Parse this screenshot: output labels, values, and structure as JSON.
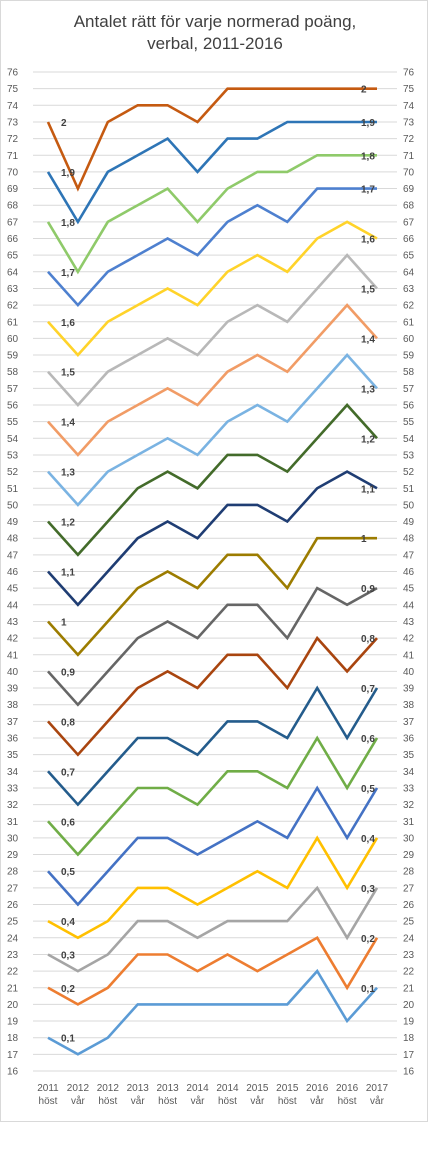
{
  "chart_data": {
    "type": "line",
    "title": "Antalet rätt för varje normerad poäng,",
    "subtitle": "verbal, 2011-2016",
    "xlabel": "",
    "ylabel": "",
    "ylim": [
      16,
      76
    ],
    "y_ticks": [
      16,
      17,
      18,
      19,
      20,
      21,
      22,
      23,
      24,
      25,
      26,
      27,
      28,
      29,
      30,
      31,
      32,
      33,
      34,
      35,
      36,
      37,
      38,
      39,
      40,
      41,
      42,
      43,
      44,
      45,
      46,
      47,
      48,
      49,
      50,
      51,
      52,
      53,
      54,
      55,
      56,
      57,
      58,
      59,
      60,
      61,
      62,
      63,
      64,
      65,
      66,
      67,
      68,
      69,
      70,
      71,
      72,
      73,
      74,
      75,
      76
    ],
    "grid": true,
    "legend": "none",
    "categories": [
      {
        "year": "2011",
        "term": "höst"
      },
      {
        "year": "2012",
        "term": "vår"
      },
      {
        "year": "2012",
        "term": "höst"
      },
      {
        "year": "2013",
        "term": "vår"
      },
      {
        "year": "2013",
        "term": "höst"
      },
      {
        "year": "2014",
        "term": "vår"
      },
      {
        "year": "2014",
        "term": "höst"
      },
      {
        "year": "2015",
        "term": "vår"
      },
      {
        "year": "2015",
        "term": "höst"
      },
      {
        "year": "2016",
        "term": "vår"
      },
      {
        "year": "2016",
        "term": "höst"
      },
      {
        "year": "2017",
        "term": "vår"
      }
    ],
    "series": [
      {
        "name": "2",
        "color": "#c55a11",
        "values": [
          73,
          69,
          73,
          74,
          74,
          73,
          75,
          75,
          75,
          75,
          75,
          75
        ]
      },
      {
        "name": "1,9",
        "color": "#2e75b6",
        "values": [
          70,
          67,
          70,
          71,
          72,
          70,
          72,
          72,
          73,
          73,
          73,
          73
        ]
      },
      {
        "name": "1,8",
        "color": "#8fca6a",
        "values": [
          67,
          64,
          67,
          68,
          69,
          67,
          69,
          70,
          70,
          71,
          71,
          71
        ]
      },
      {
        "name": "1,7",
        "color": "#4e80cf",
        "values": [
          64,
          62,
          64,
          65,
          66,
          65,
          67,
          68,
          67,
          69,
          69,
          69
        ]
      },
      {
        "name": "1,6",
        "color": "#ffd32a",
        "values": [
          61,
          59,
          61,
          62,
          63,
          62,
          64,
          65,
          64,
          66,
          67,
          66
        ]
      },
      {
        "name": "1,5",
        "color": "#b8b8b8",
        "values": [
          58,
          56,
          58,
          59,
          60,
          59,
          61,
          62,
          61,
          63,
          65,
          63
        ]
      },
      {
        "name": "1,4",
        "color": "#f19c66",
        "values": [
          55,
          53,
          55,
          56,
          57,
          56,
          58,
          59,
          58,
          60,
          62,
          60
        ]
      },
      {
        "name": "1,3",
        "color": "#7ab3e2",
        "values": [
          52,
          50,
          52,
          53,
          54,
          53,
          55,
          56,
          55,
          57,
          59,
          57
        ]
      },
      {
        "name": "1,2",
        "color": "#436b2a",
        "values": [
          49,
          47,
          49,
          51,
          52,
          51,
          53,
          53,
          52,
          54,
          56,
          54
        ]
      },
      {
        "name": "1,1",
        "color": "#1f3d73",
        "values": [
          46,
          44,
          46,
          48,
          49,
          48,
          50,
          50,
          49,
          51,
          52,
          51
        ]
      },
      {
        "name": "1",
        "color": "#9c7c00",
        "values": [
          43,
          41,
          43,
          45,
          46,
          45,
          47,
          47,
          45,
          48,
          48,
          48
        ]
      },
      {
        "name": "0,9",
        "color": "#666666",
        "values": [
          40,
          38,
          40,
          42,
          43,
          42,
          44,
          44,
          42,
          45,
          44,
          45
        ]
      },
      {
        "name": "0,8",
        "color": "#a9450f",
        "values": [
          37,
          35,
          37,
          39,
          40,
          39,
          41,
          41,
          39,
          42,
          40,
          42
        ]
      },
      {
        "name": "0,7",
        "color": "#245c8c",
        "values": [
          34,
          32,
          34,
          36,
          36,
          35,
          37,
          37,
          36,
          39,
          36,
          39
        ]
      },
      {
        "name": "0,6",
        "color": "#70ad47",
        "values": [
          31,
          29,
          31,
          33,
          33,
          32,
          34,
          34,
          33,
          36,
          33,
          36
        ]
      },
      {
        "name": "0,5",
        "color": "#4472c4",
        "values": [
          28,
          26,
          28,
          30,
          30,
          29,
          30,
          31,
          30,
          33,
          30,
          33
        ]
      },
      {
        "name": "0,4",
        "color": "#ffc000",
        "values": [
          25,
          24,
          25,
          27,
          27,
          26,
          27,
          28,
          27,
          30,
          27,
          30
        ]
      },
      {
        "name": "0,3",
        "color": "#a5a5a5",
        "values": [
          23,
          22,
          23,
          25,
          25,
          24,
          25,
          25,
          25,
          27,
          24,
          27
        ]
      },
      {
        "name": "0,2",
        "color": "#ed7d31",
        "values": [
          21,
          20,
          21,
          23,
          23,
          22,
          23,
          22,
          23,
          24,
          21,
          24
        ]
      },
      {
        "name": "0,1",
        "color": "#5b9bd5",
        "values": [
          18,
          17,
          18,
          20,
          20,
          20,
          20,
          20,
          20,
          22,
          19,
          21
        ]
      }
    ]
  }
}
